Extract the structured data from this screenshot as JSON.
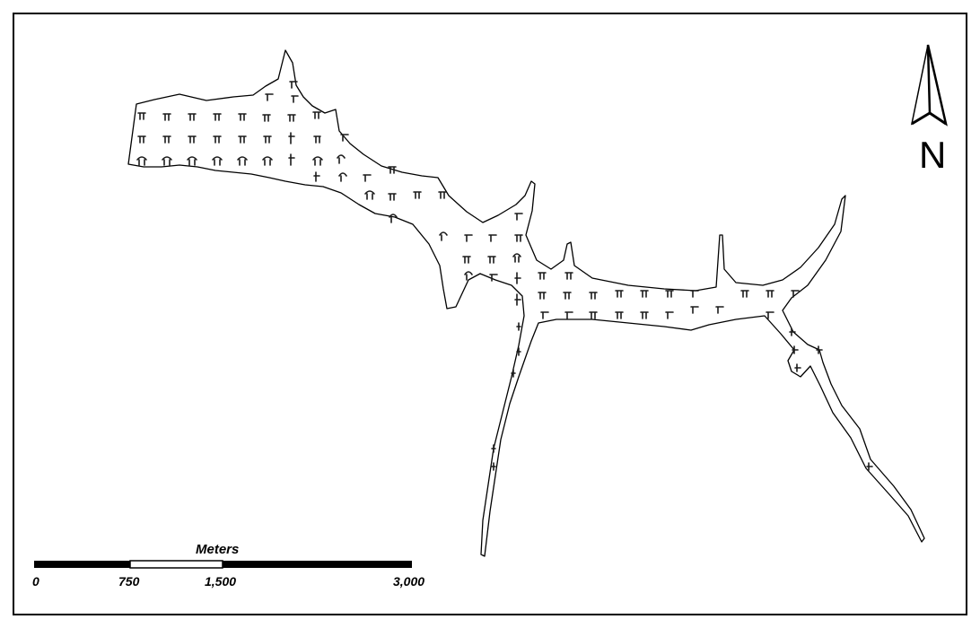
{
  "map": {
    "north_arrow": {
      "label": "N",
      "icon": "north-arrow-icon"
    },
    "scale_bar": {
      "title": "Meters",
      "ticks": [
        "0",
        "750",
        "1,500",
        "3,000"
      ]
    },
    "colors": {
      "outline": "#000000",
      "fill": "#ffffff",
      "marker": "#1a1a1a"
    }
  }
}
